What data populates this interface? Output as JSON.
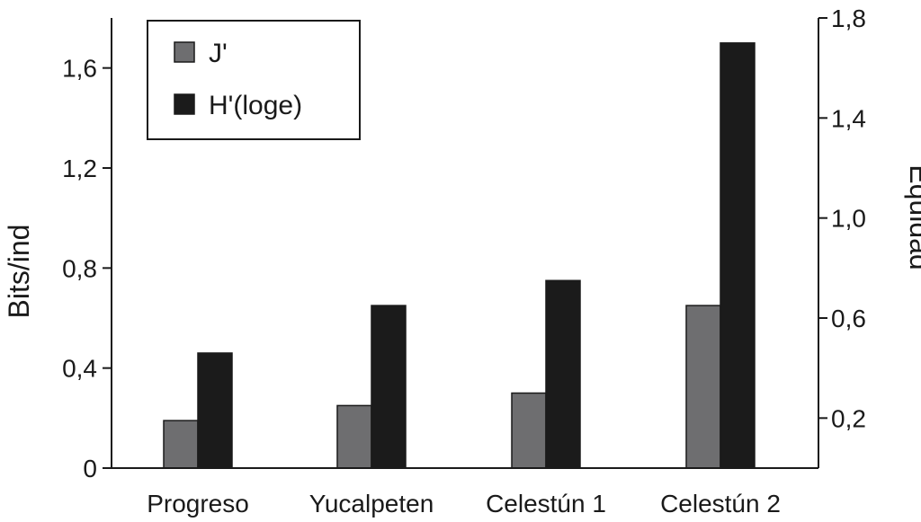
{
  "chart_data": {
    "type": "bar",
    "title": "",
    "categories": [
      "Progreso",
      "Yucalpeten",
      "Celestún 1",
      "Celestún 2"
    ],
    "series": [
      {
        "name": "J'",
        "color": "#6e6e70",
        "axis": "left",
        "values": [
          0.19,
          0.25,
          0.3,
          0.65
        ]
      },
      {
        "name": "H'(loge)",
        "color": "#1b1b1b",
        "axis": "left",
        "values": [
          0.46,
          0.65,
          0.75,
          1.7
        ]
      }
    ],
    "ylabel": "Bits/ind",
    "ylabel_right": "Equidad",
    "ylim": [
      0,
      1.8
    ],
    "ylim_right": [
      0,
      1.8
    ],
    "yticks": [
      {
        "value": 0,
        "label": "0"
      },
      {
        "value": 0.4,
        "label": "0,4"
      },
      {
        "value": 0.8,
        "label": "0,8"
      },
      {
        "value": 1.2,
        "label": "1,2"
      },
      {
        "value": 1.6,
        "label": "1,6"
      }
    ],
    "yticks_right": [
      {
        "value": 0.2,
        "label": "0,2"
      },
      {
        "value": 0.6,
        "label": "0,6"
      },
      {
        "value": 1.0,
        "label": "1,0"
      },
      {
        "value": 1.4,
        "label": "1,4"
      },
      {
        "value": 1.8,
        "label": "1,8"
      }
    ],
    "grid": false,
    "legend_position": "top-left"
  }
}
